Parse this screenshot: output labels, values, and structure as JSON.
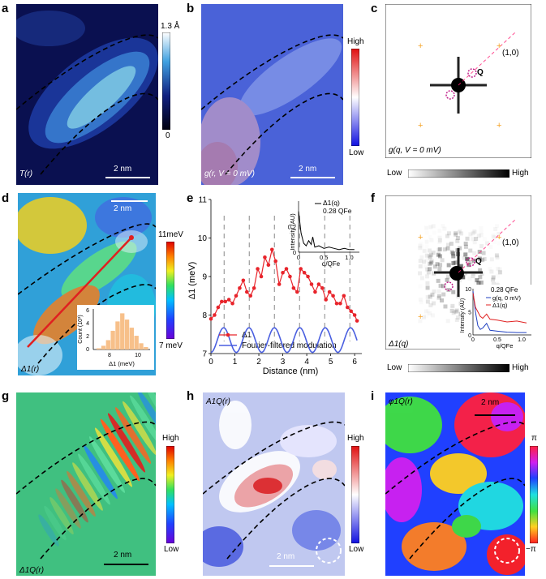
{
  "panels": {
    "a": {
      "letter": "a",
      "map_label": "T(r)",
      "scale": "2 nm",
      "cb_top": "1.3 Å",
      "cb_bottom": "0"
    },
    "b": {
      "letter": "b",
      "map_label": "g(r, V = 0 mV)",
      "scale": "2 nm",
      "cb_top": "High",
      "cb_bottom": "Low"
    },
    "c": {
      "letter": "c",
      "map_label": "g(q, V = 0 mV)",
      "q_label": "Q",
      "bragg_label": "(1,0)",
      "cb_left": "Low",
      "cb_right": "High"
    },
    "d": {
      "letter": "d",
      "map_label": "Δ1(r)",
      "scale": "2 nm",
      "cb_top": "11meV",
      "cb_bottom": "7 meV"
    },
    "e": {
      "letter": "e"
    },
    "f": {
      "letter": "f",
      "map_label": "Δ1(q)",
      "q_label": "Q",
      "bragg_label": "(1,0)",
      "cb_left": "Low",
      "cb_right": "High"
    },
    "g": {
      "letter": "g",
      "map_label": "Δ1Q(r)",
      "scale": "2 nm",
      "cb_top": "High",
      "cb_bottom": "Low"
    },
    "h": {
      "letter": "h",
      "map_label": "A1Q(r)",
      "scale": "2 nm",
      "cb_top": "High",
      "cb_bottom": "Low"
    },
    "i": {
      "letter": "i",
      "map_label": "φ1Q(r)",
      "scale": "2 nm",
      "cb_top": "π",
      "cb_bottom": "−π"
    }
  },
  "colors": {
    "red": "#e8242b",
    "blue": "#4a5fe0",
    "orange": "#f5a52a",
    "peach": "#f7c08a"
  },
  "chart_data": [
    {
      "type": "line",
      "panel": "e",
      "xlabel": "Distance (nm)",
      "ylabel": "Δ1 (meV)",
      "xlim": [
        0,
        6.3
      ],
      "ylim": [
        7,
        11
      ],
      "xticks": [
        "0",
        "1",
        "2",
        "3",
        "4",
        "5",
        "6"
      ],
      "yticks": [
        "7",
        "8",
        "9",
        "10",
        "11"
      ],
      "legend": [
        "Δ1",
        "Fourier-filtered modulation"
      ],
      "series": [
        {
          "name": "Δ1",
          "x": [
            0.0,
            0.15,
            0.3,
            0.45,
            0.6,
            0.75,
            0.9,
            1.05,
            1.2,
            1.35,
            1.5,
            1.65,
            1.8,
            1.95,
            2.1,
            2.25,
            2.4,
            2.55,
            2.7,
            2.85,
            3.0,
            3.15,
            3.3,
            3.45,
            3.6,
            3.75,
            3.9,
            4.05,
            4.2,
            4.35,
            4.5,
            4.65,
            4.8,
            4.95,
            5.1,
            5.25,
            5.4,
            5.55,
            5.7,
            5.85,
            6.0,
            6.1
          ],
          "y": [
            7.9,
            8.0,
            8.2,
            8.35,
            8.35,
            8.4,
            8.3,
            8.5,
            8.7,
            8.9,
            8.6,
            8.5,
            8.7,
            9.2,
            9.0,
            9.5,
            9.3,
            9.7,
            9.4,
            8.8,
            9.1,
            9.2,
            9.0,
            8.7,
            8.6,
            9.2,
            9.1,
            9.0,
            8.8,
            8.6,
            8.8,
            8.7,
            8.4,
            8.6,
            8.5,
            8.3,
            8.3,
            8.5,
            8.2,
            8.1,
            8.0,
            7.85
          ]
        },
        {
          "name": "Fourier-filtered modulation",
          "period": 1.06,
          "center": 7.35,
          "amplitude": 0.32
        }
      ],
      "vlines": [
        0.55,
        1.6,
        2.65,
        3.7,
        4.75,
        5.8
      ]
    },
    {
      "type": "line",
      "panel": "e-inset",
      "xlabel": "q/QFe",
      "ylabel": "Intensity (AU)",
      "xlim": [
        0,
        1.2
      ],
      "ylim": [
        0,
        0.4
      ],
      "xticks": [
        "0",
        "0.5",
        "1.0"
      ],
      "yticks": [
        "0",
        "0.2"
      ],
      "legend": [
        "Δ1(q)"
      ],
      "annotation": "0.28 QFe",
      "series": [
        {
          "name": "Δ1(q)",
          "x": [
            0,
            0.05,
            0.1,
            0.15,
            0.2,
            0.25,
            0.28,
            0.32,
            0.4,
            0.5,
            0.6,
            0.7,
            0.8,
            0.9,
            1.0,
            1.1
          ],
          "y": [
            0.32,
            0.15,
            0.07,
            0.05,
            0.09,
            0.06,
            0.12,
            0.04,
            0.05,
            0.03,
            0.04,
            0.03,
            0.02,
            0.03,
            0.02,
            0.02
          ]
        }
      ]
    },
    {
      "type": "line",
      "panel": "f-inset",
      "xlabel": "q/QFe",
      "ylabel": "Intensity (AU)",
      "xlim": [
        0,
        1.2
      ],
      "ylim": [
        0,
        10
      ],
      "xticks": [
        "0",
        "0.5",
        "1.0"
      ],
      "yticks": [
        "0",
        "5",
        "10"
      ],
      "legend": [
        "g(q, 0 mV)",
        "Δ1(q)"
      ],
      "annotation": "0.28 QFe",
      "series": [
        {
          "name": "g(q, 0 mV)",
          "x": [
            0,
            0.05,
            0.1,
            0.15,
            0.2,
            0.28,
            0.35,
            0.5,
            0.7,
            0.9,
            1.1
          ],
          "y": [
            9.5,
            5,
            2,
            1.2,
            1.5,
            2.5,
            1,
            0.8,
            0.6,
            0.5,
            0.5
          ]
        },
        {
          "name": "Δ1(q)",
          "x": [
            0,
            0.05,
            0.1,
            0.15,
            0.2,
            0.28,
            0.35,
            0.5,
            0.7,
            0.9,
            1.1
          ],
          "y": [
            9,
            6,
            5,
            4,
            3.6,
            4.5,
            3.4,
            3.2,
            2.8,
            3.0,
            2.6
          ]
        }
      ]
    }
  ],
  "e_labels": {
    "ylabel": "Δ1 (meV)",
    "xlabel": "Distance (nm)",
    "legend1": "Δ1",
    "legend2": "Fourier-filtered modulation",
    "inset_legend": "Δ1(q)",
    "inset_ann": "0.28 QFe",
    "inset_ylabel": "Intensity (AU)",
    "inset_xlabel": "q/QFe"
  },
  "d_hist": {
    "ylabel": "Count (10³)",
    "xlabel": "Δ1 (meV)",
    "xticks": [
      "8",
      "10"
    ],
    "yticks": [
      "0",
      "2",
      "4",
      "6"
    ],
    "counts": [
      0.2,
      0.6,
      1.5,
      3.0,
      4.5,
      5.8,
      4.8,
      3.5,
      2.2,
      1.0,
      0.4
    ]
  },
  "f_labels": {
    "inset_ann": "0.28 QFe",
    "leg1": "g(q, 0 mV)",
    "leg2": "Δ1(q)",
    "inset_ylabel": "Intensity (AU)",
    "inset_xlabel": "q/QFe"
  }
}
